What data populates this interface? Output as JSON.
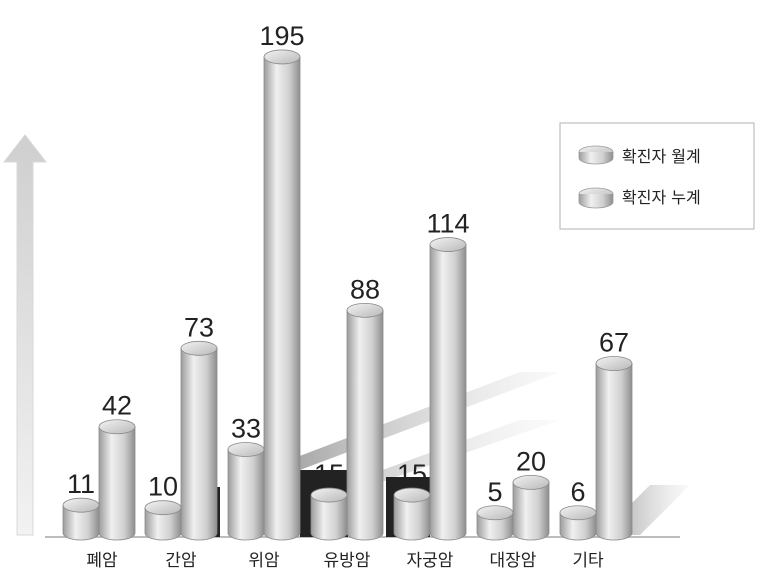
{
  "chart_data": {
    "type": "bar",
    "categories": [
      "폐암",
      "간암",
      "위암",
      "유방암",
      "자궁암",
      "대장암",
      "기타"
    ],
    "series": [
      {
        "name": "확진자 월계",
        "values": [
          11,
          10,
          33,
          15,
          15,
          5,
          6
        ]
      },
      {
        "name": "확진자 누계",
        "values": [
          42,
          73,
          195,
          88,
          114,
          20,
          67
        ]
      }
    ],
    "legend_position": "top-right",
    "grid": false
  },
  "colors": {
    "bar_fill": "#d6d6d6",
    "bar_shadow": "#9a9a9a",
    "dark_block": "#222222",
    "text": "#222222"
  }
}
